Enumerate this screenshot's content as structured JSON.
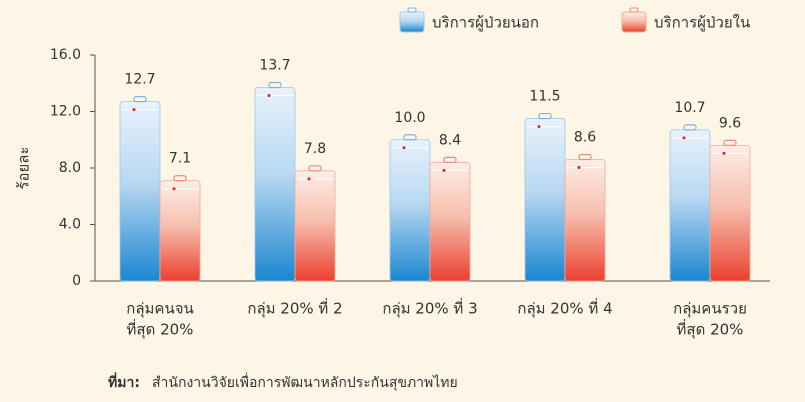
{
  "chart_data": {
    "type": "bar",
    "ylabel": "ร้อยละ",
    "categories": [
      [
        "กลุ่มคนจน",
        "ที่สุด 20%"
      ],
      [
        "กลุ่ม 20% ที่ 2"
      ],
      [
        "กลุ่ม 20% ที่ 3"
      ],
      [
        "กลุ่ม 20% ที่ 4"
      ],
      [
        "กลุ่มคนรวย",
        "ที่สุด 20%"
      ]
    ],
    "series": [
      {
        "name": "บริการผู้ป่วยนอก",
        "color": "#1e88d2",
        "values": [
          12.7,
          13.7,
          10.0,
          11.5,
          10.7
        ],
        "value_labels": [
          "12.7",
          "13.7",
          "10.0",
          "11.5",
          "10.7"
        ]
      },
      {
        "name": "บริการผู้ป่วยใน",
        "color": "#ee4a3a",
        "values": [
          7.1,
          7.8,
          8.4,
          8.6,
          9.6
        ],
        "value_labels": [
          "7.1",
          "7.8",
          "8.4",
          "8.6",
          "9.6"
        ]
      }
    ],
    "ylim": [
      0,
      16
    ],
    "yticks": [
      0,
      {
        "value": 4,
        "label": "4.0"
      },
      {
        "value": 8,
        "label": "8.0"
      },
      {
        "value": 12,
        "label": "12.0"
      },
      {
        "value": 16,
        "label": "16.0"
      }
    ],
    "source_label": "ที่มา:",
    "source": "สำนักงานวิจัยเพื่อการพัฒนาหลักประกันสุขภาพไทย"
  }
}
